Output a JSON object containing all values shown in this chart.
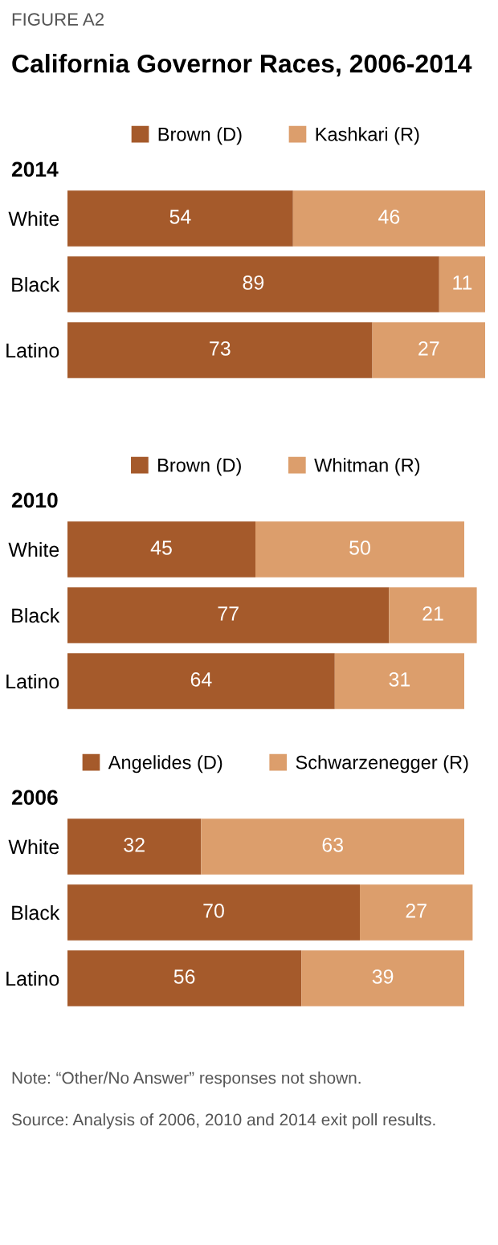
{
  "chart_data": [
    {
      "type": "bar",
      "orientation": "horizontal",
      "stacked": true,
      "data_labels": true,
      "legend": "top",
      "tick_labels": "y",
      "subtitle": "FIGURE A2",
      "title": "California Governor Races, 2006-2014",
      "ylabel": "2014",
      "categories": [
        "White",
        "Black",
        "Latino"
      ],
      "series": [
        {
          "name": "Brown (D)",
          "color": "#a55a2b",
          "values": [
            54,
            89,
            73
          ]
        },
        {
          "name": "Kashkari (R)",
          "color": "#dc9e6c",
          "values": [
            46,
            11,
            27
          ]
        }
      ]
    },
    {
      "type": "bar",
      "orientation": "horizontal",
      "stacked": true,
      "data_labels": true,
      "legend": "top",
      "tick_labels": "y",
      "ylabel": "2010",
      "categories": [
        "White",
        "Black",
        "Latino"
      ],
      "series": [
        {
          "name": "Brown (D)",
          "color": "#a55a2b",
          "values": [
            45,
            77,
            64
          ]
        },
        {
          "name": "Whitman (R)",
          "color": "#dc9e6c",
          "values": [
            50,
            21,
            31
          ]
        }
      ]
    },
    {
      "type": "bar",
      "orientation": "horizontal",
      "stacked": true,
      "data_labels": true,
      "legend": "top",
      "tick_labels": "y",
      "ylabel": "2006",
      "categories": [
        "White",
        "Black",
        "Latino"
      ],
      "series": [
        {
          "name": "Angelides (D)",
          "color": "#a55a2b",
          "values": [
            32,
            70,
            56
          ]
        },
        {
          "name": "Schwarzenegger (R)",
          "color": "#dc9e6c",
          "values": [
            63,
            27,
            39
          ]
        }
      ],
      "annotations": [
        "Note: “Other/No Answer” responses not shown.",
        "Source: Analysis of 2006, 2010 and 2014 exit poll results."
      ]
    }
  ]
}
